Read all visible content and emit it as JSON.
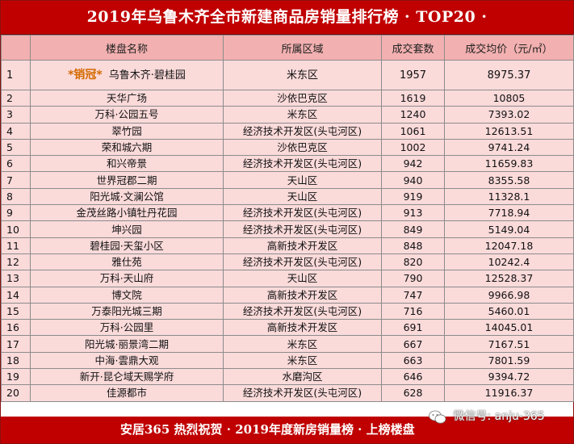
{
  "title": "2019年乌鲁木齐全市新建商品房销量排行榜 · TOP20 ·",
  "columns": [
    "",
    "楼盘名称",
    "所属区域",
    "成交套数",
    "成交均价（元/㎡）"
  ],
  "champion_tag": "*销冠*",
  "rows": [
    {
      "rank": "1",
      "name": "乌鲁木齐·碧桂园",
      "area": "米东区",
      "units": "1957",
      "price": "8975.37"
    },
    {
      "rank": "2",
      "name": "天华广场",
      "area": "沙依巴克区",
      "units": "1619",
      "price": "10805"
    },
    {
      "rank": "3",
      "name": "万科·公园五号",
      "area": "米东区",
      "units": "1240",
      "price": "7393.02"
    },
    {
      "rank": "4",
      "name": "翠竹园",
      "area": "经济技术开发区(头屯河区)",
      "units": "1061",
      "price": "12613.51"
    },
    {
      "rank": "5",
      "name": "荣和城六期",
      "area": "沙依巴克区",
      "units": "1002",
      "price": "9741.24"
    },
    {
      "rank": "6",
      "name": "和兴帝景",
      "area": "经济技术开发区(头屯河区)",
      "units": "942",
      "price": "11659.83"
    },
    {
      "rank": "7",
      "name": "世界冠郡二期",
      "area": "天山区",
      "units": "940",
      "price": "8355.58"
    },
    {
      "rank": "8",
      "name": "阳光城·文澜公馆",
      "area": "天山区",
      "units": "919",
      "price": "11328.1"
    },
    {
      "rank": "9",
      "name": "金茂丝路小镇牡丹花园",
      "area": "经济技术开发区(头屯河区)",
      "units": "913",
      "price": "7718.94"
    },
    {
      "rank": "10",
      "name": "坤兴园",
      "area": "经济技术开发区(头屯河区)",
      "units": "849",
      "price": "5149.04"
    },
    {
      "rank": "11",
      "name": "碧桂园·天玺小区",
      "area": "高新技术开发区",
      "units": "848",
      "price": "12047.18"
    },
    {
      "rank": "12",
      "name": "雅仕苑",
      "area": "经济技术开发区(头屯河区)",
      "units": "820",
      "price": "10242.4"
    },
    {
      "rank": "13",
      "name": "万科·天山府",
      "area": "天山区",
      "units": "790",
      "price": "12528.37"
    },
    {
      "rank": "14",
      "name": "博文院",
      "area": "高新技术开发区",
      "units": "747",
      "price": "9966.98"
    },
    {
      "rank": "15",
      "name": "万泰阳光城三期",
      "area": "经济技术开发区(头屯河区)",
      "units": "716",
      "price": "5460.01"
    },
    {
      "rank": "16",
      "name": "万科·公园里",
      "area": "高新技术开发区",
      "units": "691",
      "price": "14045.01"
    },
    {
      "rank": "17",
      "name": "阳光城·丽景湾二期",
      "area": "米东区",
      "units": "667",
      "price": "7167.51"
    },
    {
      "rank": "18",
      "name": "中海·雲鼎大观",
      "area": "米东区",
      "units": "663",
      "price": "7801.59"
    },
    {
      "rank": "19",
      "name": "新开·昆仑域天赐学府",
      "area": "水磨沟区",
      "units": "646",
      "price": "9394.72"
    },
    {
      "rank": "20",
      "name": "佳源都市",
      "area": "经济技术开发区(头屯河区)",
      "units": "628",
      "price": "11916.37"
    }
  ],
  "footer": "安居365 热烈祝贺 · 2019年度新房销量榜 · 上榜楼盘",
  "watermark": "微信号: anju-365",
  "colors": {
    "banner": "#c00000",
    "header_bg": "#f3b0b0",
    "row_bg": "#fbdada",
    "champion": "#d46a00"
  }
}
